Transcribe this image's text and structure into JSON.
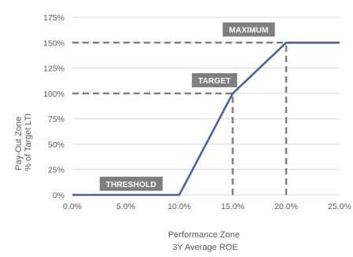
{
  "chart_data": {
    "type": "line",
    "title": "",
    "xlabel": [
      "Performance Zone",
      "3Y Average ROE"
    ],
    "ylabel": [
      "Pay-Out Zone",
      "% of Target LTI"
    ],
    "xlim": [
      0,
      25
    ],
    "ylim": [
      0,
      175
    ],
    "x_ticks": [
      0,
      5,
      10,
      15,
      20,
      25
    ],
    "y_ticks": [
      0,
      25,
      50,
      75,
      100,
      125,
      150,
      175
    ],
    "x_tick_labels": [
      "0.0%",
      "5.0%",
      "10.0%",
      "15.0%",
      "20.0%",
      "25.0%"
    ],
    "y_tick_labels": [
      "0%",
      "25%",
      "50%",
      "75%",
      "100%",
      "125%",
      "150%",
      "175%"
    ],
    "grid": "horizontal",
    "legend": "none",
    "series": [
      {
        "x": [
          0,
          10,
          15,
          20,
          25
        ],
        "y": [
          0,
          0,
          100,
          150,
          150
        ],
        "color": "#4a5fa6"
      }
    ],
    "reference_lines": [
      {
        "from": [
          0,
          150
        ],
        "to": [
          20,
          150
        ]
      },
      {
        "from": [
          0,
          100
        ],
        "to": [
          15,
          100
        ]
      },
      {
        "from": [
          15,
          0
        ],
        "to": [
          15,
          100
        ]
      },
      {
        "from": [
          20,
          0
        ],
        "to": [
          20,
          150
        ]
      }
    ],
    "annotations": [
      {
        "text": "THRESHOLD",
        "x": 5.5,
        "y": 4
      },
      {
        "text": "TARGET",
        "x": 13.3,
        "y": 106
      },
      {
        "text": "MAXIMUM",
        "x": 16.5,
        "y": 156
      }
    ],
    "colors": {
      "line": "#4a5fa6",
      "reference": "#808080",
      "label_box": "#7f7f7f",
      "grid": "#d9d9d9",
      "text": "#595959"
    }
  }
}
